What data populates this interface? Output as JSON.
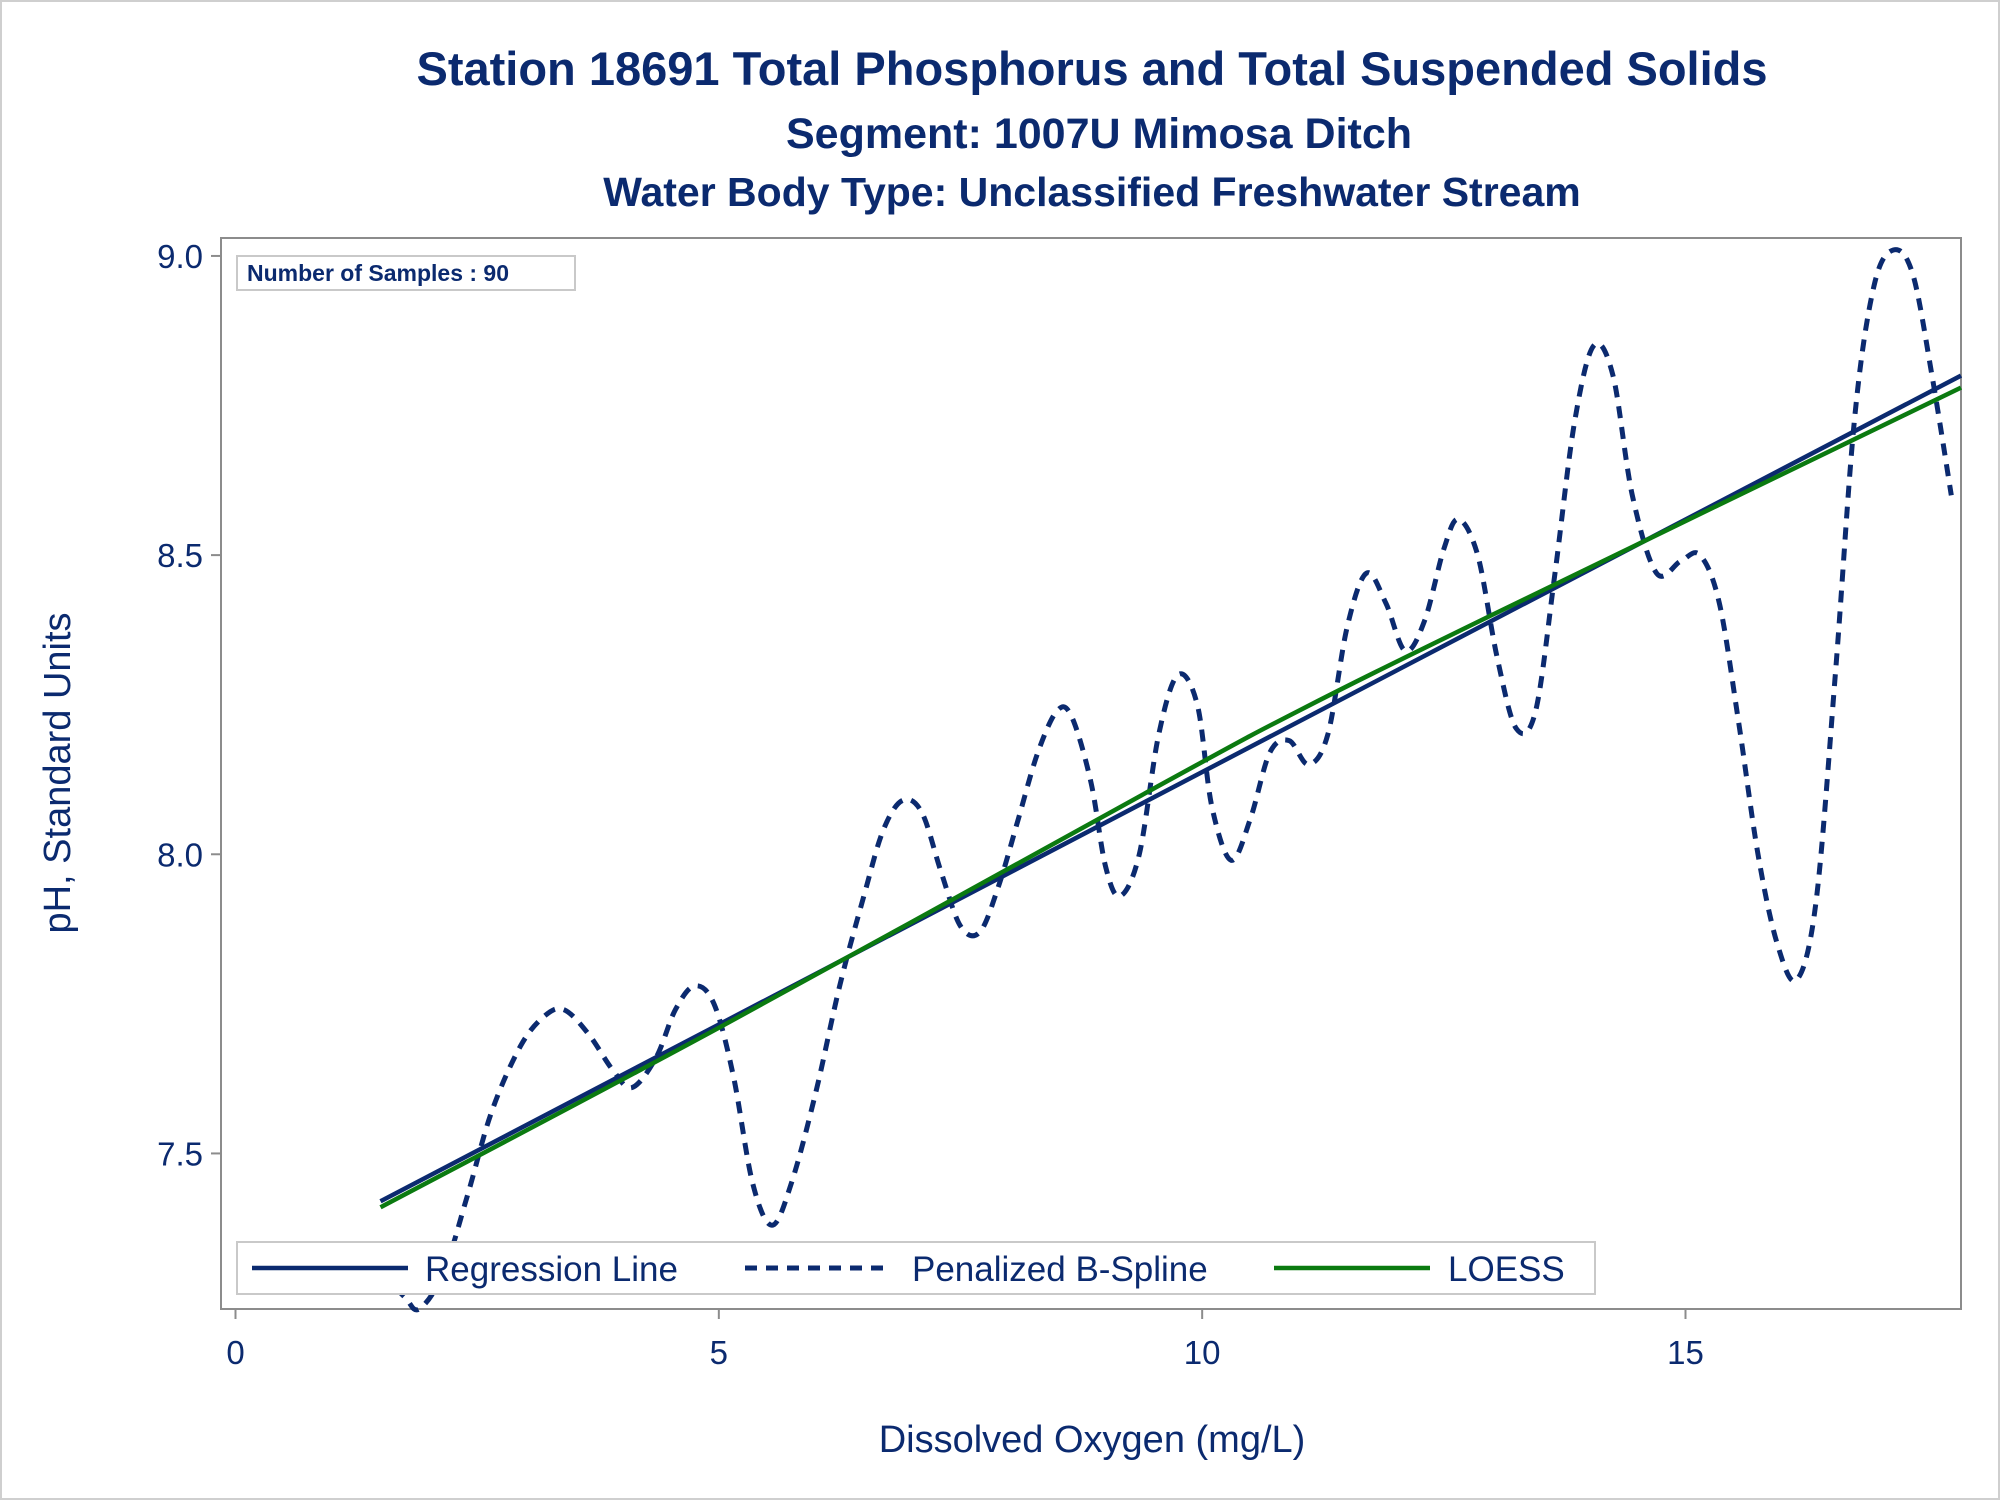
{
  "chart_data": {
    "type": "line",
    "title": "Station 18691  Total Phosphorus and Total Suspended Solids",
    "subtitle": "Segment: 1007U  Mimosa Ditch",
    "subtitle2": "Water Body Type: Unclassified Freshwater Stream",
    "xlabel": "Dissolved Oxygen (mg/L)",
    "ylabel": "pH, Standard Units",
    "xlim": [
      -0.15,
      17.85
    ],
    "ylim": [
      7.24,
      9.03
    ],
    "x_ticks": [
      0,
      5,
      10,
      15
    ],
    "x_tick_labels": [
      "0",
      "5",
      "10",
      "15"
    ],
    "y_ticks": [
      7.5,
      8.0,
      8.5,
      9.0
    ],
    "y_tick_labels": [
      "7.5",
      "8.0",
      "8.5",
      "9.0"
    ],
    "inset_label": "Number of Samples : 90",
    "legend_position": "bottom-inside",
    "series": [
      {
        "name": "Regression Line",
        "style": "solid",
        "color": "#0b2a6f",
        "points": [
          [
            1.5,
            7.42
          ],
          [
            17.85,
            8.8
          ]
        ]
      },
      {
        "name": "Penalized B-Spline",
        "style": "dashed",
        "color": "#0b2a6f",
        "points": [
          [
            1.5,
            7.3
          ],
          [
            1.75,
            7.26
          ],
          [
            1.9,
            7.24
          ],
          [
            2.15,
            7.3
          ],
          [
            2.4,
            7.43
          ],
          [
            2.65,
            7.57
          ],
          [
            2.95,
            7.68
          ],
          [
            3.2,
            7.73
          ],
          [
            3.4,
            7.74
          ],
          [
            3.65,
            7.7
          ],
          [
            3.9,
            7.64
          ],
          [
            4.1,
            7.61
          ],
          [
            4.35,
            7.66
          ],
          [
            4.55,
            7.74
          ],
          [
            4.75,
            7.78
          ],
          [
            4.95,
            7.75
          ],
          [
            5.15,
            7.63
          ],
          [
            5.35,
            7.45
          ],
          [
            5.55,
            7.38
          ],
          [
            5.75,
            7.45
          ],
          [
            6.0,
            7.6
          ],
          [
            6.25,
            7.78
          ],
          [
            6.5,
            7.93
          ],
          [
            6.7,
            8.04
          ],
          [
            6.9,
            8.09
          ],
          [
            7.1,
            8.07
          ],
          [
            7.3,
            7.97
          ],
          [
            7.5,
            7.88
          ],
          [
            7.7,
            7.87
          ],
          [
            7.9,
            7.95
          ],
          [
            8.1,
            8.06
          ],
          [
            8.3,
            8.17
          ],
          [
            8.5,
            8.24
          ],
          [
            8.65,
            8.23
          ],
          [
            8.85,
            8.12
          ],
          [
            9.0,
            7.98
          ],
          [
            9.15,
            7.93
          ],
          [
            9.35,
            8.0
          ],
          [
            9.55,
            8.2
          ],
          [
            9.75,
            8.3
          ],
          [
            9.95,
            8.25
          ],
          [
            10.1,
            8.08
          ],
          [
            10.3,
            7.99
          ],
          [
            10.5,
            8.06
          ],
          [
            10.7,
            8.17
          ],
          [
            10.9,
            8.19
          ],
          [
            11.1,
            8.15
          ],
          [
            11.3,
            8.2
          ],
          [
            11.5,
            8.38
          ],
          [
            11.7,
            8.47
          ],
          [
            11.9,
            8.42
          ],
          [
            12.1,
            8.34
          ],
          [
            12.3,
            8.39
          ],
          [
            12.5,
            8.51
          ],
          [
            12.65,
            8.56
          ],
          [
            12.85,
            8.5
          ],
          [
            13.05,
            8.33
          ],
          [
            13.25,
            8.21
          ],
          [
            13.45,
            8.24
          ],
          [
            13.65,
            8.47
          ],
          [
            13.85,
            8.72
          ],
          [
            14.05,
            8.85
          ],
          [
            14.25,
            8.8
          ],
          [
            14.45,
            8.6
          ],
          [
            14.7,
            8.47
          ],
          [
            14.95,
            8.49
          ],
          [
            15.15,
            8.5
          ],
          [
            15.35,
            8.42
          ],
          [
            15.55,
            8.22
          ],
          [
            15.75,
            8.0
          ],
          [
            15.95,
            7.85
          ],
          [
            16.15,
            7.79
          ],
          [
            16.35,
            7.92
          ],
          [
            16.55,
            8.3
          ],
          [
            16.75,
            8.73
          ],
          [
            16.95,
            8.95
          ],
          [
            17.15,
            9.01
          ],
          [
            17.35,
            8.97
          ],
          [
            17.55,
            8.8
          ],
          [
            17.75,
            8.6
          ]
        ]
      },
      {
        "name": "LOESS",
        "style": "solid",
        "color": "#0b7a10",
        "points": [
          [
            1.5,
            7.41
          ],
          [
            5.0,
            7.71
          ],
          [
            9.5,
            8.11
          ],
          [
            11.0,
            8.24
          ],
          [
            13.0,
            8.4
          ],
          [
            17.85,
            8.78
          ]
        ]
      }
    ]
  }
}
